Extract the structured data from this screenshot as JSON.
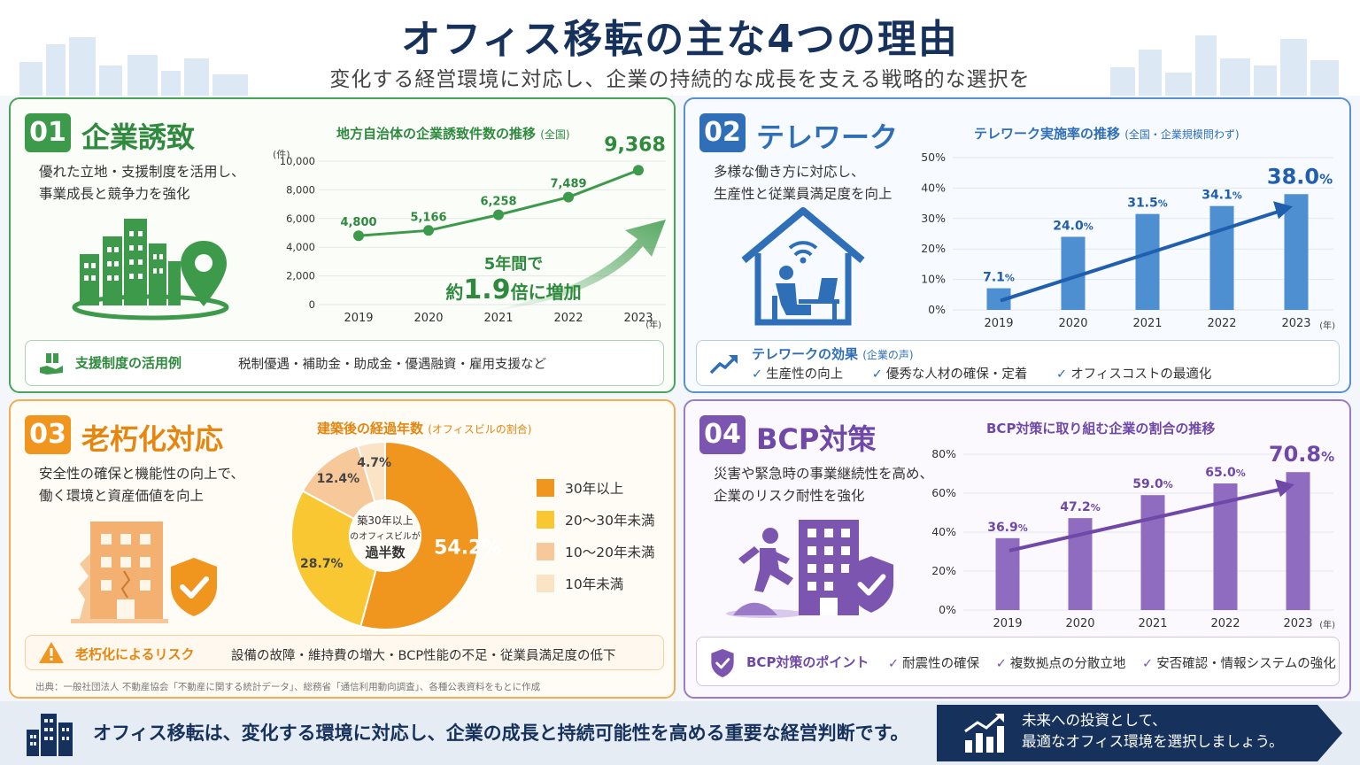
{
  "header": {
    "title": "オフィス移転の主な4つの理由",
    "subtitle": "変化する経営環境に対応し、企業の持続的な成長を支える戦略的な選択を"
  },
  "colors": {
    "green": "#3d9a4a",
    "blue": "#2f6fb8",
    "orange": "#f0961f",
    "purple": "#7b55b0",
    "navy": "#16325c"
  },
  "panels": [
    {
      "num": "01",
      "title": "企業誘致",
      "desc": [
        "優れた立地・支援制度を活用し、",
        "事業成長と競争力を強化"
      ],
      "chart_title": "地方自治体の企業誘致件数の推移",
      "chart_title_note": "(全国)",
      "unit_label": "(件)",
      "x_unit": "(年)",
      "callout": [
        "5年間で",
        "約",
        "1.9",
        "倍に増加"
      ],
      "info_label": "支援制度の活用例",
      "info_text": "税制優遇・補助金・助成金・優遇融資・雇用支援など",
      "icons": [
        "buildings-icon",
        "location-pin-icon",
        "gift-hand-icon"
      ]
    },
    {
      "num": "02",
      "title": "テレワーク",
      "desc": [
        "多様な働き方に対応し、",
        "生産性と従業員満足度を向上"
      ],
      "chart_title": "テレワーク実施率の推移",
      "chart_title_note": "(全国・企業規模問わず)",
      "x_unit": "(年)",
      "info_label": "テレワークの効果",
      "info_note": "(企業の声)",
      "checks": [
        "生産性の向上",
        "優秀な人材の確保・定着",
        "オフィスコストの最適化"
      ],
      "icons": [
        "home-office-icon",
        "trend-up-icon"
      ]
    },
    {
      "num": "03",
      "title": "老朽化対応",
      "desc": [
        "安全性の確保と機能性の向上で、",
        "働く環境と資産価値を向上"
      ],
      "chart_title": "建築後の経過年数",
      "chart_title_note": "(オフィスビルの割合)",
      "donut_center": [
        "築30年以上",
        "のオフィスビルが",
        "過半数"
      ],
      "info_label": "老朽化によるリスク",
      "info_text": "設備の故障・維持費の増大・BCP性能の不足・従業員満足度の低下",
      "source": "出典：一般社団法人 不動産協会「不動産に関する統計データ」、総務省「通信利用動向調査」、各種公表資料をもとに作成",
      "icons": [
        "old-building-icon",
        "shield-check-icon",
        "warning-icon"
      ]
    },
    {
      "num": "04",
      "title": "BCP対策",
      "desc": [
        "災害や緊急時の事業継続性を高め、",
        "企業のリスク耐性を強化"
      ],
      "chart_title": "BCP対策に取り組む企業の割合の推移",
      "x_unit": "(年)",
      "info_label": "BCP対策のポイント",
      "checks": [
        "耐震性の確保",
        "複数拠点の分散立地",
        "安否確認・情報システムの強化"
      ],
      "icons": [
        "running-person-icon",
        "building-icon",
        "shield-check-icon"
      ]
    }
  ],
  "footer": {
    "text": "オフィス移転は、変化する環境に対応し、企業の成長と持続可能性を高める重要な経営判断です。",
    "cta": [
      "未来への投資として、",
      "最適なオフィス環境を選択しましょう。"
    ],
    "icons": [
      "city-icon",
      "growth-chart-icon"
    ]
  },
  "chart_data": [
    {
      "type": "line",
      "title": "地方自治体の企業誘致件数の推移",
      "ylabel": "(件)",
      "x": [
        "2019",
        "2020",
        "2021",
        "2022",
        "2023"
      ],
      "values": [
        4800,
        5166,
        6258,
        7489,
        9368
      ],
      "labels": [
        "4,800",
        "5,166",
        "6,258",
        "7,489",
        "9,368"
      ],
      "ylim": [
        0,
        10000
      ],
      "yticks": [
        "0",
        "2,000",
        "4,000",
        "6,000",
        "8,000",
        "10,000"
      ],
      "grid": true
    },
    {
      "type": "bar",
      "title": "テレワーク実施率の推移",
      "categories": [
        "2019",
        "2020",
        "2021",
        "2022",
        "2023"
      ],
      "values": [
        7.1,
        24.0,
        31.5,
        34.1,
        38.0
      ],
      "labels": [
        "7.1",
        "24.0",
        "31.5",
        "34.1",
        "38.0"
      ],
      "ylim": [
        0,
        50
      ],
      "yticks": [
        "0%",
        "10%",
        "20%",
        "30%",
        "40%",
        "50%"
      ],
      "grid": true
    },
    {
      "type": "pie",
      "title": "建築後の経過年数",
      "categories": [
        "30年以上",
        "20〜30年未満",
        "10〜20年未満",
        "10年未満"
      ],
      "values": [
        54.2,
        28.7,
        12.4,
        4.7
      ],
      "labels": [
        "54.2%",
        "28.7%",
        "12.4%",
        "4.7%"
      ],
      "colors": [
        "#f0961f",
        "#f8c732",
        "#f7c99a",
        "#fbe3c6"
      ],
      "legend": "right"
    },
    {
      "type": "bar",
      "title": "BCP対策に取り組む企業の割合の推移",
      "categories": [
        "2019",
        "2020",
        "2021",
        "2022",
        "2023"
      ],
      "values": [
        36.9,
        47.2,
        59.0,
        65.0,
        70.8
      ],
      "labels": [
        "36.9",
        "47.2",
        "59.0",
        "65.0",
        "70.8"
      ],
      "ylim": [
        0,
        80
      ],
      "yticks": [
        "0%",
        "20%",
        "40%",
        "60%",
        "80%"
      ],
      "grid": true
    }
  ]
}
